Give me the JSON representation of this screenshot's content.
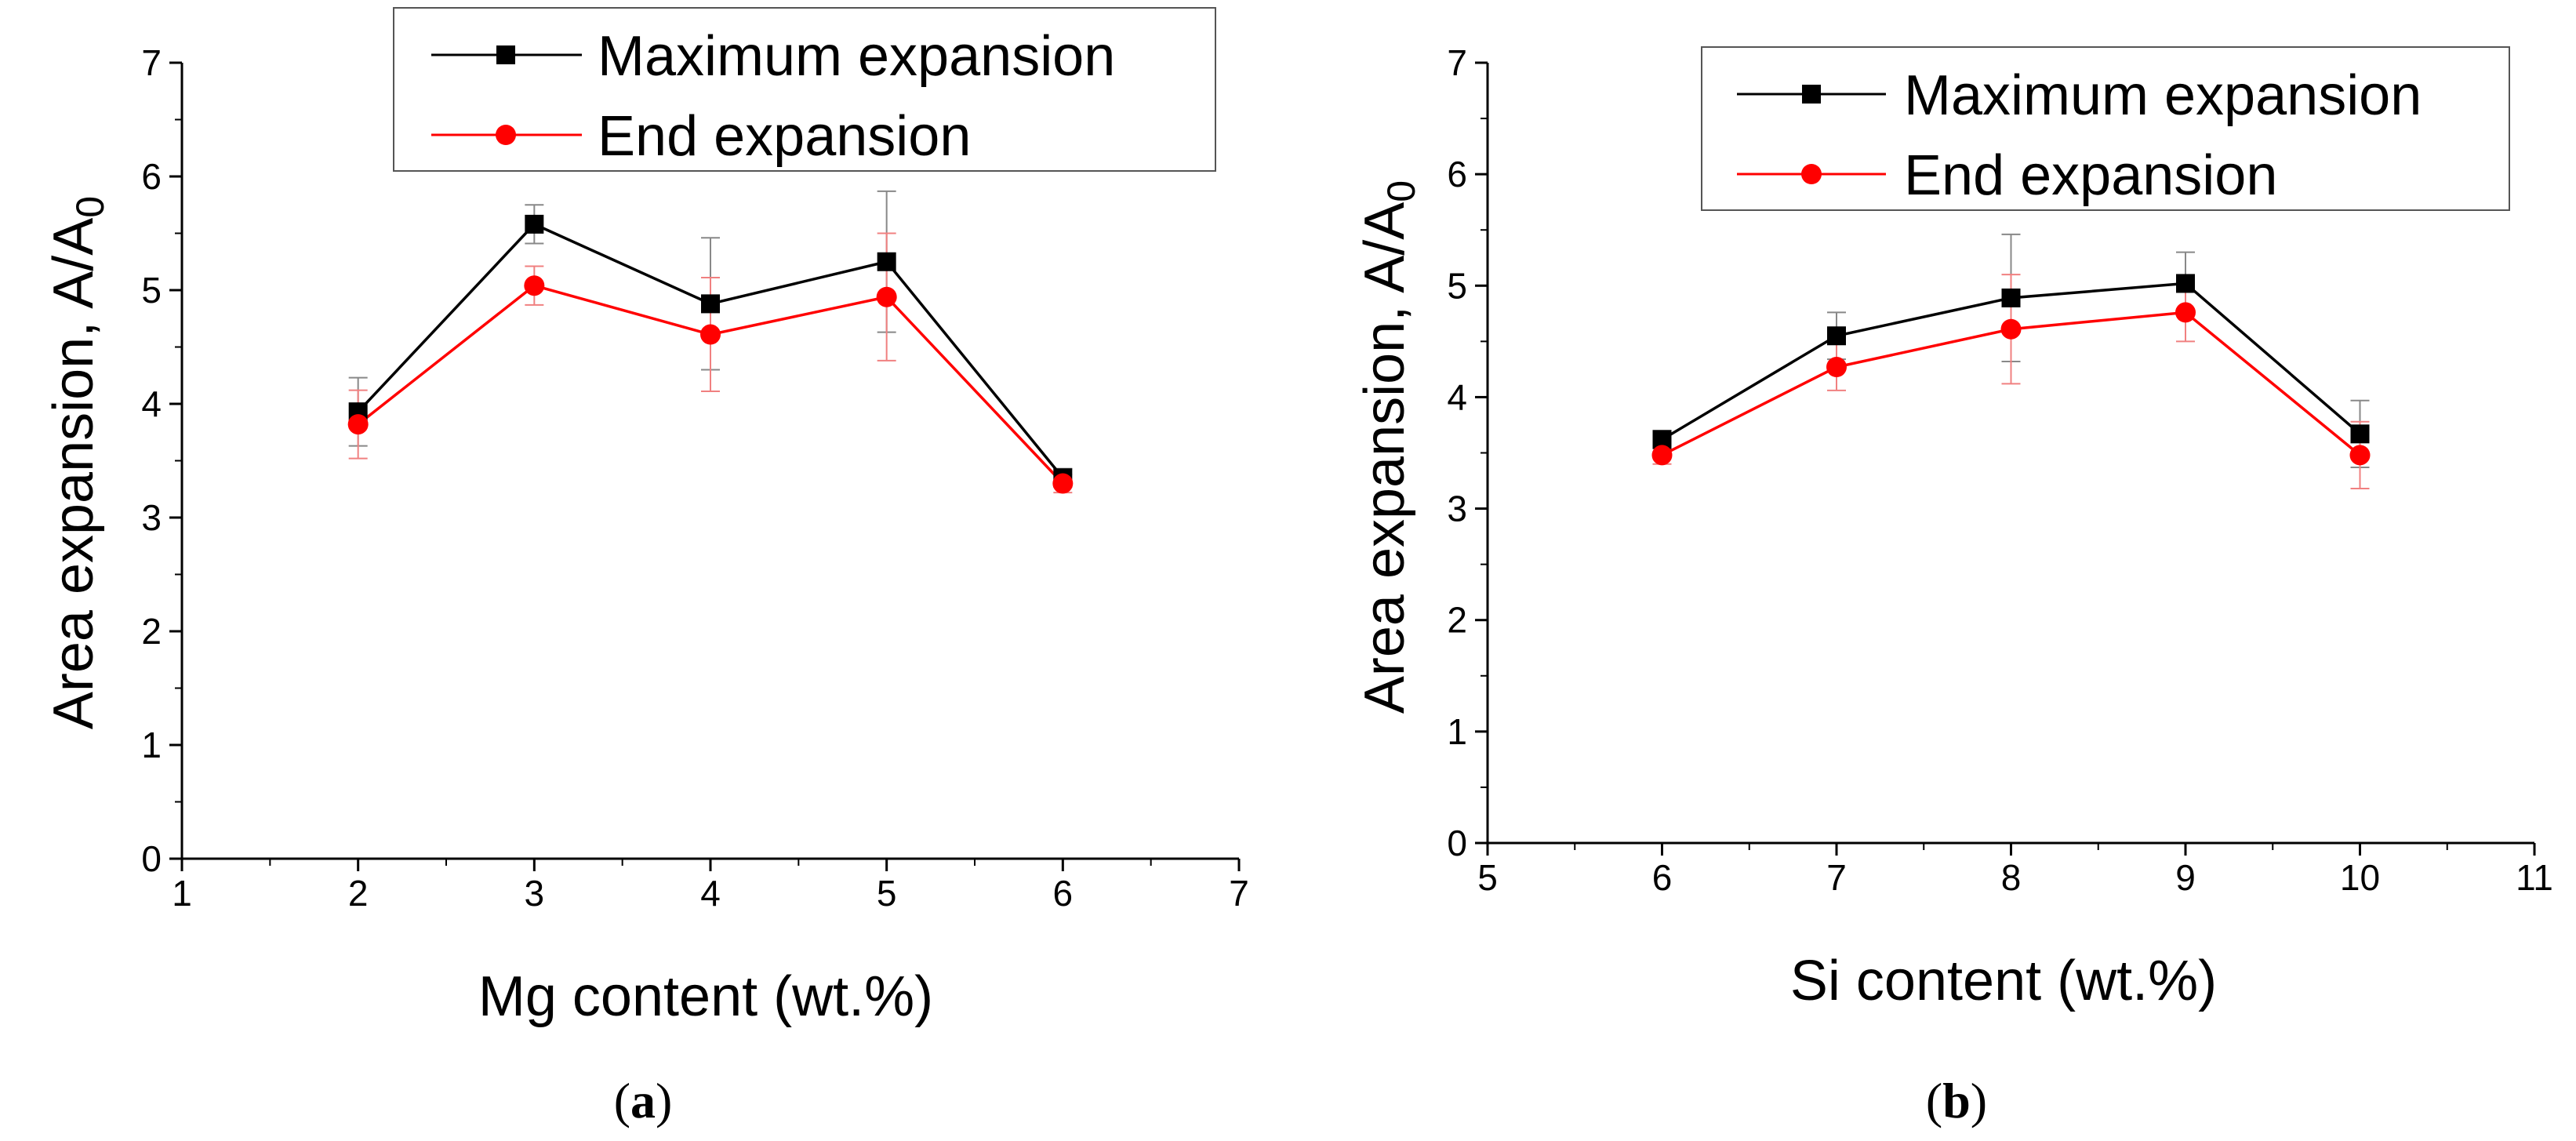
{
  "chart_data": [
    {
      "type": "line",
      "panel_label": {
        "open": "(",
        "letter": "a",
        "close": ")"
      },
      "xlabel": "Mg content (wt.%)",
      "ylabel": {
        "main": "Area expansion, A/A",
        "sub": "0"
      },
      "xlim": [
        1,
        7
      ],
      "ylim": [
        0,
        7
      ],
      "xticks": [
        1,
        2,
        3,
        4,
        5,
        6,
        7
      ],
      "yticks": [
        0,
        1,
        2,
        3,
        4,
        5,
        6,
        7
      ],
      "x": [
        2,
        3,
        4,
        5,
        6
      ],
      "legend_position": "top-right",
      "series": [
        {
          "name": "Maximum expansion",
          "color": "#000000",
          "marker": "square",
          "values": [
            3.93,
            5.58,
            4.88,
            5.25,
            3.35
          ],
          "errors": [
            0.3,
            0.17,
            0.58,
            0.62,
            0.08
          ]
        },
        {
          "name": "End expansion",
          "color": "#ff0000",
          "marker": "circle",
          "values": [
            3.82,
            5.04,
            4.61,
            4.94,
            3.3
          ],
          "errors": [
            0.3,
            0.17,
            0.5,
            0.56,
            0.08
          ]
        }
      ]
    },
    {
      "type": "line",
      "panel_label": {
        "open": "(",
        "letter": "b",
        "close": ")"
      },
      "xlabel": "Si content (wt.%)",
      "ylabel": {
        "main": "Area expansion, A/A",
        "sub": "0"
      },
      "xlim": [
        5,
        11
      ],
      "ylim": [
        0,
        7
      ],
      "xticks": [
        5,
        6,
        7,
        8,
        9,
        10,
        11
      ],
      "yticks": [
        0,
        1,
        2,
        3,
        4,
        5,
        6,
        7
      ],
      "x": [
        6,
        7,
        8,
        9,
        10
      ],
      "legend_position": "top-right",
      "series": [
        {
          "name": "Maximum expansion",
          "color": "#000000",
          "marker": "square",
          "values": [
            3.62,
            4.55,
            4.89,
            5.02,
            3.67
          ],
          "errors": [
            0.08,
            0.21,
            0.57,
            0.28,
            0.3
          ]
        },
        {
          "name": "End expansion",
          "color": "#ff0000",
          "marker": "circle",
          "values": [
            3.48,
            4.27,
            4.61,
            4.76,
            3.48
          ],
          "errors": [
            0.08,
            0.21,
            0.49,
            0.26,
            0.3
          ]
        }
      ]
    }
  ]
}
